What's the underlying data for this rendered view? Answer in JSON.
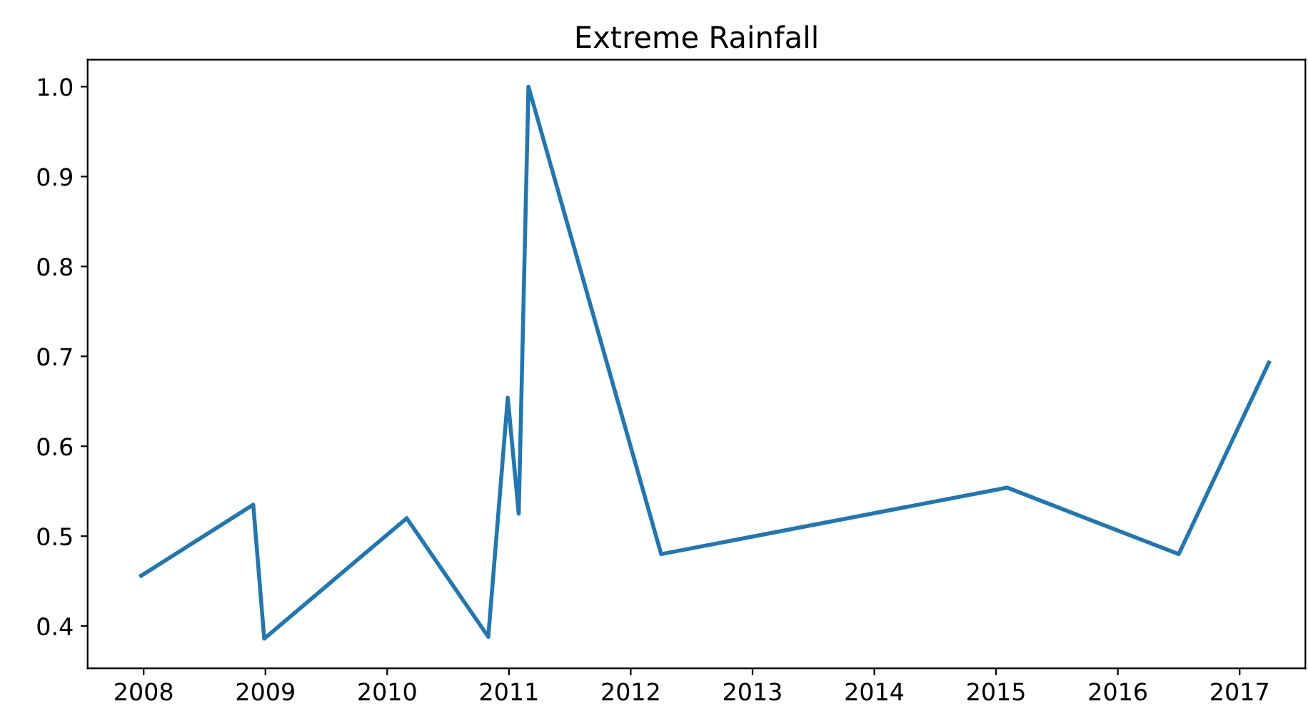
{
  "chart_data": {
    "type": "line",
    "title": "Extreme Rainfall",
    "x": [
      2007.98,
      2008.9,
      2008.99,
      2010.16,
      2010.83,
      2010.99,
      2011.08,
      2011.16,
      2012.25,
      2015.09,
      2016.5,
      2017.24
    ],
    "series": [
      {
        "color": "#1f77b4",
        "values": [
          0.456,
          0.535,
          0.386,
          0.52,
          0.388,
          0.654,
          0.525,
          1.0,
          0.48,
          0.554,
          0.48,
          0.693
        ]
      }
    ],
    "xlim": [
      2007.54,
      2017.54
    ],
    "xticks": [
      2008,
      2009,
      2010,
      2011,
      2012,
      2013,
      2014,
      2015,
      2016,
      2017
    ],
    "ylim": [
      0.353,
      1.03
    ],
    "yticks": [
      {
        "value": 0.4,
        "label": "0.4"
      },
      {
        "value": 0.5,
        "label": "0.5"
      },
      {
        "value": 0.6,
        "label": "0.6"
      },
      {
        "value": 0.7,
        "label": "0.7"
      },
      {
        "value": 0.8,
        "label": "0.8"
      },
      {
        "value": 0.9,
        "label": "0.9"
      },
      {
        "value": 1.0,
        "label": "1.0"
      }
    ],
    "grid": false
  }
}
